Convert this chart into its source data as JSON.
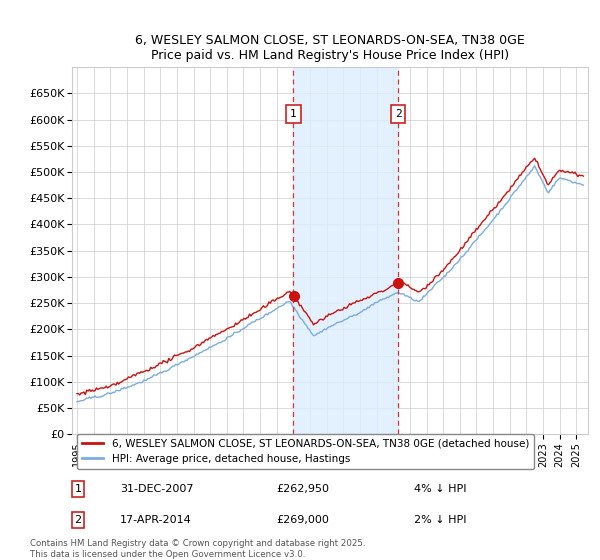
{
  "title_line1": "6, WESLEY SALMON CLOSE, ST LEONARDS-ON-SEA, TN38 0GE",
  "title_line2": "Price paid vs. HM Land Registry's House Price Index (HPI)",
  "ylim": [
    0,
    700000
  ],
  "yticks": [
    0,
    50000,
    100000,
    150000,
    200000,
    250000,
    300000,
    350000,
    400000,
    450000,
    500000,
    550000,
    600000,
    650000
  ],
  "ytick_labels": [
    "£0",
    "£50K",
    "£100K",
    "£150K",
    "£200K",
    "£250K",
    "£300K",
    "£350K",
    "£400K",
    "£450K",
    "£500K",
    "£550K",
    "£600K",
    "£650K"
  ],
  "hpi_color": "#7aade0",
  "price_color": "#cc1111",
  "marker1_date": 2008.0,
  "marker2_date": 2014.29,
  "marker1_price_val": 262950,
  "marker2_price_val": 269000,
  "marker1_label": "31-DEC-2007",
  "marker2_label": "17-APR-2014",
  "marker1_price": "£262,950",
  "marker2_price": "£269,000",
  "marker1_pct": "4% ↓ HPI",
  "marker2_pct": "2% ↓ HPI",
  "legend_line1": "6, WESLEY SALMON CLOSE, ST LEONARDS-ON-SEA, TN38 0GE (detached house)",
  "legend_line2": "HPI: Average price, detached house, Hastings",
  "footnote": "Contains HM Land Registry data © Crown copyright and database right 2025.\nThis data is licensed under the Open Government Licence v3.0.",
  "bg_color": "#ffffff",
  "grid_color": "#cccccc",
  "shaded_region_color": "#ddeeff"
}
